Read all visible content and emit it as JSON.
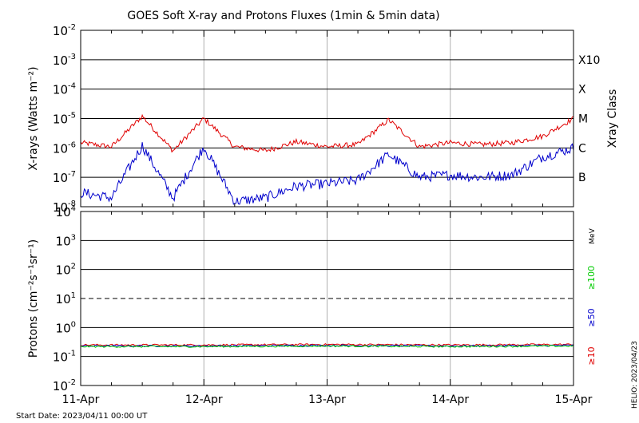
{
  "chart_data": [
    {
      "type": "line",
      "title": "GOES Soft X-ray and Protons Fluxes   (1min & 5min data)",
      "ylabel": "X-rays (Watts m⁻²)",
      "yscale": "log",
      "ylim": [
        1e-08,
        0.01
      ],
      "y_ticks": [
        {
          "base": "10",
          "exp": "-2"
        },
        {
          "base": "10",
          "exp": "-3"
        },
        {
          "base": "10",
          "exp": "-4"
        },
        {
          "base": "10",
          "exp": "-5"
        },
        {
          "base": "10",
          "exp": "-6"
        },
        {
          "base": "10",
          "exp": "-7"
        },
        {
          "base": "10",
          "exp": "-8"
        }
      ],
      "right_axis_title": "Xray Class",
      "class_labels": [
        {
          "label": "X10",
          "value": 0.001
        },
        {
          "label": "X",
          "value": 0.0001
        },
        {
          "label": "M",
          "value": 1e-05
        },
        {
          "label": "C",
          "value": 1e-06
        },
        {
          "label": "B",
          "value": 1e-07
        }
      ],
      "x": [
        0,
        0.25,
        0.5,
        0.75,
        1.0,
        1.25,
        1.5,
        1.75,
        2.0,
        2.25,
        2.5,
        2.75,
        3.0,
        3.25,
        3.5,
        3.75,
        4.0
      ],
      "series": [
        {
          "color": "#e00000",
          "values": [
            1.5e-06,
            1.1e-06,
            1.2e-05,
            8e-07,
            1e-05,
            1.1e-06,
            8e-07,
            1.6e-06,
            1.1e-06,
            1.3e-06,
            9e-06,
            1.1e-06,
            1.5e-06,
            1.3e-06,
            1.5e-06,
            2.5e-06,
            1e-05
          ]
        },
        {
          "color": "#0000cc",
          "values": [
            3e-08,
            2e-08,
            1.2e-06,
            2e-08,
            1.1e-06,
            1.5e-08,
            2e-08,
            5e-08,
            6e-08,
            8e-08,
            6e-07,
            1e-07,
            1.2e-07,
            1e-07,
            1.2e-07,
            5e-07,
            1e-06
          ]
        }
      ],
      "grid": true
    },
    {
      "type": "line",
      "ylabel": "Protons (cm⁻²s⁻¹sr⁻¹)",
      "yscale": "log",
      "ylim": [
        0.01,
        10000.0
      ],
      "y_ticks": [
        {
          "base": "10",
          "exp": "4"
        },
        {
          "base": "10",
          "exp": "3"
        },
        {
          "base": "10",
          "exp": "2"
        },
        {
          "base": "10",
          "exp": "1"
        },
        {
          "base": "10",
          "exp": "0"
        },
        {
          "base": "10",
          "exp": "-1"
        },
        {
          "base": "10",
          "exp": "-2"
        }
      ],
      "threshold_line": 10,
      "legend": [
        {
          "name": "MeV",
          "color": "#000000"
        },
        {
          "name": "≥100",
          "color": "#00cc00"
        },
        {
          "name": "≥50",
          "color": "#0000cc"
        },
        {
          "name": "≥10",
          "color": "#e00000"
        }
      ],
      "x": [
        0,
        1,
        2,
        3,
        4
      ],
      "series": [
        {
          "name": "≥10",
          "color": "#e00000",
          "values": [
            0.25,
            0.25,
            0.26,
            0.25,
            0.26
          ]
        },
        {
          "name": "≥50",
          "color": "#0000cc",
          "values": [
            0.23,
            0.23,
            0.24,
            0.23,
            0.24
          ]
        },
        {
          "name": "≥100",
          "color": "#00cc00",
          "values": [
            0.22,
            0.22,
            0.23,
            0.22,
            0.23
          ]
        }
      ],
      "grid": true
    }
  ],
  "x_tick_labels": [
    "11-Apr",
    "12-Apr",
    "13-Apr",
    "14-Apr",
    "15-Apr"
  ],
  "start_date": "Start Date: 2023/04/11 00:00 UT",
  "helio": "HELIO: 2023/04/23"
}
